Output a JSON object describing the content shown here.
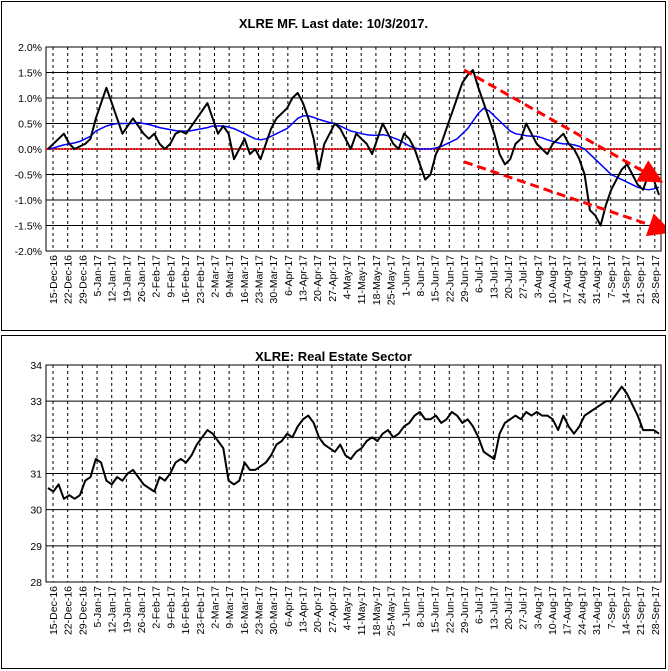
{
  "chart_data": [
    {
      "type": "line",
      "title": "XLRE MF. Last date: 10/3/2017.",
      "ylim": [
        -2.0,
        2.0
      ],
      "yticks": [
        "2.0%",
        "1.5%",
        "1.0%",
        "0.5%",
        "0.0%",
        "-0.5%",
        "-1.0%",
        "-1.5%",
        "-2.0%"
      ],
      "ytick_values": [
        2.0,
        1.5,
        1.0,
        0.5,
        0.0,
        -0.5,
        -1.0,
        -1.5,
        -2.0
      ],
      "x_tick_labels": [
        "15-Dec-16",
        "22-Dec-16",
        "29-Dec-16",
        "5-Jan-17",
        "12-Jan-17",
        "19-Jan-17",
        "26-Jan-17",
        "2-Feb-17",
        "9-Feb-17",
        "16-Feb-17",
        "23-Feb-17",
        "2-Mar-17",
        "9-Mar-17",
        "16-Mar-17",
        "23-Mar-17",
        "30-Mar-17",
        "6-Apr-17",
        "13-Apr-17",
        "20-Apr-17",
        "27-Apr-17",
        "4-May-17",
        "11-May-17",
        "18-May-17",
        "25-May-17",
        "1-Jun-17",
        "8-Jun-17",
        "15-Jun-17",
        "22-Jun-17",
        "29-Jun-17",
        "6-Jul-17",
        "13-Jul-17",
        "20-Jul-17",
        "27-Jul-17",
        "3-Aug-17",
        "10-Aug-17",
        "17-Aug-17",
        "24-Aug-17",
        "31-Aug-17",
        "7-Sep-17",
        "14-Sep-17",
        "21-Sep-17",
        "28-Sep-17"
      ],
      "grid": "horizontal solid at each y tick, vertical dashed at each x tick",
      "colors": {
        "mf": "#000000",
        "average": "#0000ff",
        "zero": "#ff0000",
        "trend": "#ff0000"
      },
      "series": [
        {
          "values": [
            0.0,
            0.1,
            0.2,
            0.3,
            0.1,
            0.0,
            0.05,
            0.1,
            0.2,
            0.6,
            0.9,
            1.2,
            0.9,
            0.6,
            0.3,
            0.45,
            0.6,
            0.45,
            0.3,
            0.2,
            0.3,
            0.1,
            0.0,
            0.1,
            0.3,
            0.35,
            0.3,
            0.45,
            0.6,
            0.75,
            0.9,
            0.6,
            0.3,
            0.45,
            0.3,
            -0.2,
            0.0,
            0.2,
            -0.1,
            0.0,
            -0.2,
            0.1,
            0.4,
            0.6,
            0.7,
            0.8,
            1.0,
            1.1,
            0.9,
            0.6,
            0.2,
            -0.4,
            0.1,
            0.3,
            0.5,
            0.4,
            0.2,
            0.0,
            0.3,
            0.2,
            0.1,
            -0.1,
            0.2,
            0.5,
            0.3,
            0.1,
            0.0,
            0.3,
            0.2,
            0.0,
            -0.3,
            -0.6,
            -0.5,
            -0.1,
            0.1,
            0.4,
            0.7,
            1.0,
            1.3,
            1.45,
            1.55,
            1.2,
            0.9,
            0.6,
            0.3,
            -0.1,
            -0.3,
            -0.2,
            0.1,
            0.2,
            0.5,
            0.3,
            0.1,
            0.0,
            -0.1,
            0.1,
            0.2,
            0.3,
            0.1,
            0.0,
            -0.2,
            -0.5,
            -1.2,
            -1.3,
            -1.5,
            -1.1,
            -0.8,
            -0.6,
            -0.4,
            -0.3,
            -0.5,
            -0.7,
            -0.8,
            -0.5,
            -0.6,
            -0.9
          ]
        },
        {
          "values": [
            0.0,
            0.02,
            0.05,
            0.08,
            0.1,
            0.12,
            0.15,
            0.2,
            0.25,
            0.35,
            0.4,
            0.45,
            0.48,
            0.5,
            0.5,
            0.5,
            0.5,
            0.52,
            0.5,
            0.48,
            0.45,
            0.42,
            0.4,
            0.38,
            0.36,
            0.35,
            0.35,
            0.36,
            0.38,
            0.4,
            0.42,
            0.45,
            0.45,
            0.45,
            0.43,
            0.4,
            0.35,
            0.3,
            0.25,
            0.2,
            0.18,
            0.2,
            0.25,
            0.3,
            0.35,
            0.4,
            0.5,
            0.6,
            0.65,
            0.65,
            0.62,
            0.58,
            0.55,
            0.52,
            0.5,
            0.45,
            0.4,
            0.35,
            0.33,
            0.3,
            0.28,
            0.27,
            0.27,
            0.28,
            0.26,
            0.22,
            0.18,
            0.12,
            0.06,
            0.02,
            0.0,
            0.0,
            0.0,
            0.02,
            0.05,
            0.1,
            0.15,
            0.2,
            0.3,
            0.4,
            0.55,
            0.7,
            0.8,
            0.75,
            0.65,
            0.55,
            0.45,
            0.35,
            0.3,
            0.28,
            0.26,
            0.25,
            0.25,
            0.22,
            0.18,
            0.15,
            0.12,
            0.1,
            0.1,
            0.08,
            0.05,
            0.0,
            -0.1,
            -0.2,
            -0.3,
            -0.4,
            -0.5,
            -0.55,
            -0.6,
            -0.65,
            -0.7,
            -0.75,
            -0.78,
            -0.8,
            -0.78,
            -0.75
          ]
        }
      ],
      "zero_line": 0.0,
      "trend_channel": [
        {
          "from": [
            "29-Jun-17",
            1.55
          ],
          "to": [
            "3-Oct-17",
            -0.6
          ]
        },
        {
          "from": [
            "29-Jun-17",
            -0.25
          ],
          "to": [
            "28-Sep-17",
            -1.6
          ]
        }
      ]
    },
    {
      "type": "line",
      "title": "XLRE: Real Estate Sector",
      "ylim": [
        28,
        34
      ],
      "yticks": [
        "34",
        "33",
        "32",
        "31",
        "30",
        "29",
        "28"
      ],
      "ytick_values": [
        34,
        33,
        32,
        31,
        30,
        29,
        28
      ],
      "x_tick_labels": [
        "15-Dec-16",
        "22-Dec-16",
        "29-Dec-16",
        "5-Jan-17",
        "12-Jan-17",
        "19-Jan-17",
        "26-Jan-17",
        "2-Feb-17",
        "9-Feb-17",
        "16-Feb-17",
        "23-Feb-17",
        "2-Mar-17",
        "9-Mar-17",
        "16-Mar-17",
        "23-Mar-17",
        "30-Mar-17",
        "6-Apr-17",
        "13-Apr-17",
        "20-Apr-17",
        "27-Apr-17",
        "4-May-17",
        "11-May-17",
        "18-May-17",
        "25-May-17",
        "1-Jun-17",
        "8-Jun-17",
        "15-Jun-17",
        "22-Jun-17",
        "29-Jun-17",
        "6-Jul-17",
        "13-Jul-17",
        "20-Jul-17",
        "27-Jul-17",
        "3-Aug-17",
        "10-Aug-17",
        "17-Aug-17",
        "24-Aug-17",
        "31-Aug-17",
        "7-Sep-17",
        "14-Sep-17",
        "21-Sep-17",
        "28-Sep-17"
      ],
      "grid": "horizontal solid at each y tick, vertical dashed at each x tick",
      "colors": {
        "price": "#000000"
      },
      "series": [
        {
          "values": [
            30.6,
            30.5,
            30.7,
            30.3,
            30.4,
            30.3,
            30.4,
            30.8,
            30.9,
            31.4,
            31.3,
            30.8,
            30.7,
            30.9,
            30.8,
            31.0,
            31.1,
            30.9,
            30.7,
            30.6,
            30.5,
            30.9,
            30.8,
            31.0,
            31.3,
            31.4,
            31.3,
            31.5,
            31.8,
            32.0,
            32.2,
            32.1,
            31.9,
            31.7,
            30.8,
            30.7,
            30.8,
            31.3,
            31.1,
            31.1,
            31.2,
            31.3,
            31.5,
            31.8,
            31.9,
            32.1,
            32.0,
            32.3,
            32.5,
            32.6,
            32.4,
            32.0,
            31.8,
            31.7,
            31.6,
            31.8,
            31.5,
            31.4,
            31.6,
            31.7,
            31.9,
            32.0,
            31.9,
            32.1,
            32.2,
            32.0,
            32.1,
            32.3,
            32.4,
            32.6,
            32.7,
            32.5,
            32.5,
            32.6,
            32.4,
            32.5,
            32.7,
            32.6,
            32.4,
            32.5,
            32.3,
            32.0,
            31.6,
            31.5,
            31.4,
            32.1,
            32.4,
            32.5,
            32.6,
            32.5,
            32.7,
            32.6,
            32.7,
            32.6,
            32.6,
            32.5,
            32.2,
            32.6,
            32.3,
            32.1,
            32.3,
            32.6,
            32.7,
            32.8,
            32.9,
            33.0,
            33.0,
            33.2,
            33.4,
            33.2,
            32.9,
            32.6,
            32.2,
            32.2,
            32.2,
            32.1
          ]
        }
      ]
    }
  ]
}
